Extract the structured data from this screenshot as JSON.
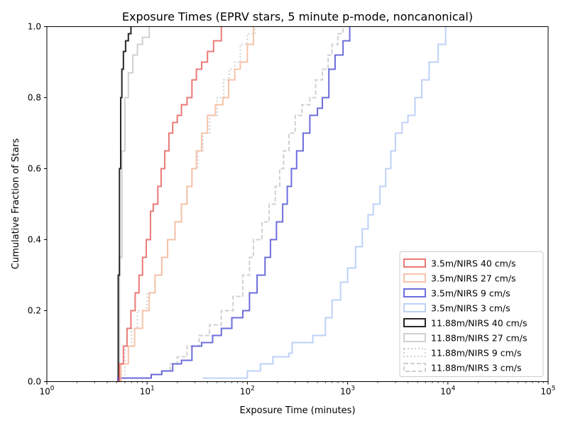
{
  "chart_data": {
    "type": "line",
    "title": "Exposure Times (EPRV stars, 5 minute p-mode, noncanonical)",
    "xlabel": "Exposure Time (minutes)",
    "ylabel": "Cumulative Fraction of Stars",
    "xscale": "log",
    "xlim": [
      1,
      100000
    ],
    "ylim": [
      0,
      1
    ],
    "grid": false,
    "legend_position": "lower-right",
    "x_ticks": [
      {
        "value": 1,
        "base": "10",
        "exp": "0"
      },
      {
        "value": 10,
        "base": "10",
        "exp": "1"
      },
      {
        "value": 100,
        "base": "10",
        "exp": "2"
      },
      {
        "value": 1000,
        "base": "10",
        "exp": "3"
      },
      {
        "value": 10000,
        "base": "10",
        "exp": "4"
      },
      {
        "value": 100000,
        "base": "10",
        "exp": "5"
      }
    ],
    "y_ticks": [
      {
        "value": 0,
        "label": "0.0"
      },
      {
        "value": 0.2,
        "label": "0.2"
      },
      {
        "value": 0.4,
        "label": "0.4"
      },
      {
        "value": 0.6,
        "label": "0.6"
      },
      {
        "value": 0.8,
        "label": "0.8"
      },
      {
        "value": 1,
        "label": "1.0"
      }
    ],
    "series": [
      {
        "name": "3.5m/NIRS 40 cm/s",
        "color": "#e8625f",
        "style": "solid",
        "alpha": 1,
        "x": [
          5,
          5.3,
          5.8,
          6.3,
          6.9,
          7.6,
          8.3,
          9.0,
          9.8,
          10.8,
          11.5,
          12.8,
          13.8,
          15.0,
          16.5,
          18.0,
          20.0,
          22.0,
          25.0,
          28.0,
          31.0,
          35.0,
          40.0,
          46.0,
          55.0
        ],
        "y": [
          0,
          0.05,
          0.1,
          0.15,
          0.2,
          0.25,
          0.3,
          0.35,
          0.4,
          0.48,
          0.5,
          0.55,
          0.6,
          0.65,
          0.7,
          0.73,
          0.75,
          0.78,
          0.8,
          0.85,
          0.88,
          0.9,
          0.93,
          0.96,
          1.0
        ]
      },
      {
        "name": "3.5m/NIRS 27 cm/s",
        "color": "#f6b89c",
        "style": "solid",
        "alpha": 1,
        "x": [
          5,
          5.5,
          6.5,
          7.5,
          9.0,
          10.5,
          12.0,
          14.0,
          16.0,
          19.0,
          22.0,
          25.0,
          28.0,
          31.0,
          35.0,
          40.0,
          48.0,
          57.0,
          65.0,
          75.0,
          85.0,
          100.0,
          115.0
        ],
        "y": [
          0,
          0.05,
          0.1,
          0.15,
          0.2,
          0.25,
          0.3,
          0.35,
          0.4,
          0.45,
          0.5,
          0.55,
          0.6,
          0.65,
          0.7,
          0.75,
          0.78,
          0.8,
          0.85,
          0.88,
          0.9,
          0.95,
          1.0
        ]
      },
      {
        "name": "3.5m/NIRS 9 cm/s",
        "color": "#5454d8",
        "style": "solid",
        "alpha": 1,
        "x": [
          5,
          5.1,
          11,
          14,
          18,
          22,
          28,
          35,
          45,
          55,
          70,
          90,
          105,
          125,
          150,
          170,
          195,
          225,
          250,
          275,
          310,
          360,
          420,
          500,
          560,
          650,
          750,
          900,
          1050
        ],
        "y": [
          0,
          0.01,
          0.02,
          0.03,
          0.05,
          0.06,
          0.1,
          0.11,
          0.13,
          0.15,
          0.18,
          0.2,
          0.25,
          0.3,
          0.35,
          0.4,
          0.45,
          0.5,
          0.55,
          0.6,
          0.65,
          0.7,
          0.75,
          0.77,
          0.8,
          0.88,
          0.92,
          0.96,
          1.0
        ]
      },
      {
        "name": "3.5m/NIRS 3 cm/s",
        "color": "#b3c9f5",
        "style": "solid",
        "alpha": 1,
        "x": [
          36,
          37,
          100,
          135,
          180,
          260,
          280,
          450,
          600,
          700,
          850,
          1000,
          1200,
          1400,
          1600,
          1800,
          2100,
          2400,
          2700,
          3000,
          3500,
          4000,
          4700,
          5500,
          6500,
          8000,
          9500
        ],
        "y": [
          0.01,
          0.01,
          0.03,
          0.05,
          0.07,
          0.08,
          0.11,
          0.13,
          0.18,
          0.23,
          0.28,
          0.32,
          0.38,
          0.43,
          0.47,
          0.5,
          0.55,
          0.6,
          0.65,
          0.7,
          0.73,
          0.75,
          0.8,
          0.85,
          0.9,
          0.95,
          1.0
        ]
      },
      {
        "name": "11.88m/NIRS 40 cm/s",
        "color": "#000000",
        "style": "solid",
        "alpha": 1,
        "x": [
          5.0,
          5.15,
          5.3,
          5.45,
          5.6,
          5.8,
          6.1,
          6.5,
          6.9
        ],
        "y": [
          0,
          0.3,
          0.6,
          0.8,
          0.88,
          0.93,
          0.96,
          0.98,
          1.0
        ]
      },
      {
        "name": "11.88m/NIRS 27 cm/s",
        "color": "#c8c8c8",
        "style": "solid",
        "alpha": 1,
        "x": [
          5,
          5.3,
          5.6,
          6.0,
          6.5,
          7.2,
          8.0,
          9.0,
          10.5
        ],
        "y": [
          0,
          0.35,
          0.65,
          0.8,
          0.87,
          0.92,
          0.95,
          0.97,
          1.0
        ]
      },
      {
        "name": "11.88m/NIRS 9 cm/s",
        "color": "#c8c8c8",
        "style": "dotted",
        "alpha": 1,
        "x": [
          5,
          6,
          7,
          8,
          10,
          12,
          14,
          16,
          19,
          22,
          25,
          28,
          32,
          36,
          42,
          50,
          58,
          66,
          75,
          85,
          100,
          120
        ],
        "y": [
          0,
          0.1,
          0.15,
          0.2,
          0.25,
          0.3,
          0.35,
          0.4,
          0.45,
          0.5,
          0.55,
          0.6,
          0.65,
          0.7,
          0.75,
          0.8,
          0.85,
          0.88,
          0.9,
          0.95,
          0.98,
          1.0
        ]
      },
      {
        "name": "11.88m/NIRS 3 cm/s",
        "color": "#c8c8c8",
        "style": "dashed",
        "alpha": 1,
        "x": [
          5,
          5.5,
          11,
          14,
          17,
          20,
          25,
          33,
          42,
          55,
          72,
          90,
          105,
          115,
          140,
          165,
          190,
          210,
          230,
          260,
          300,
          350,
          420,
          480,
          560,
          640,
          700,
          800,
          900
        ],
        "y": [
          0,
          0.01,
          0.02,
          0.03,
          0.05,
          0.07,
          0.1,
          0.13,
          0.16,
          0.2,
          0.24,
          0.3,
          0.35,
          0.4,
          0.45,
          0.5,
          0.55,
          0.6,
          0.65,
          0.7,
          0.75,
          0.78,
          0.8,
          0.85,
          0.88,
          0.92,
          0.95,
          0.98,
          1.0
        ]
      }
    ]
  }
}
